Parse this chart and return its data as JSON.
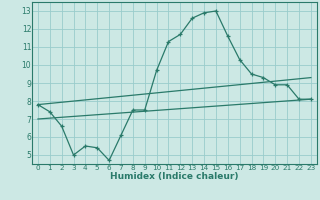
{
  "xlabel": "Humidex (Indice chaleur)",
  "bg_color": "#cce8e4",
  "grid_color": "#99cccc",
  "line_color": "#2a7a6a",
  "xlim": [
    -0.5,
    23.5
  ],
  "ylim": [
    4.5,
    13.5
  ],
  "xticks": [
    0,
    1,
    2,
    3,
    4,
    5,
    6,
    7,
    8,
    9,
    10,
    11,
    12,
    13,
    14,
    15,
    16,
    17,
    18,
    19,
    20,
    21,
    22,
    23
  ],
  "yticks": [
    5,
    6,
    7,
    8,
    9,
    10,
    11,
    12,
    13
  ],
  "main_x": [
    0,
    1,
    2,
    3,
    4,
    5,
    6,
    7,
    8,
    9,
    10,
    11,
    12,
    13,
    14,
    15,
    16,
    17,
    18,
    19,
    20,
    21,
    22,
    23
  ],
  "main_y": [
    7.8,
    7.4,
    6.6,
    5.0,
    5.5,
    5.4,
    4.7,
    6.1,
    7.5,
    7.5,
    9.7,
    11.3,
    11.7,
    12.6,
    12.9,
    13.0,
    11.6,
    10.3,
    9.5,
    9.3,
    8.9,
    8.9,
    8.1,
    8.1
  ],
  "line2_x": [
    0,
    23
  ],
  "line2_y": [
    7.8,
    9.3
  ],
  "line3_x": [
    0,
    23
  ],
  "line3_y": [
    7.0,
    8.1
  ]
}
